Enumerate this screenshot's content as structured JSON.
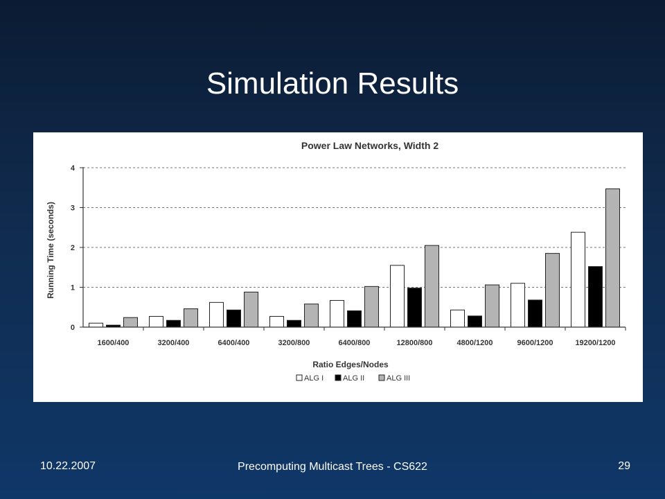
{
  "slide": {
    "title": "Simulation Results",
    "footer_date": "10.22.2007",
    "footer_course": "Precomputing Multicast Trees - CS622",
    "page_number": "29"
  },
  "colors": {
    "alg1": "#ffffff",
    "alg2": "#000000",
    "alg3": "#b4b4b4"
  },
  "chart_data": {
    "type": "bar",
    "title": "Power Law Networks, Width 2",
    "xlabel": "Ratio Edges/Nodes",
    "ylabel": "Running Time (seconds)",
    "ylim": [
      0,
      4
    ],
    "yticks": [
      "0",
      "1",
      "2",
      "3",
      "4"
    ],
    "grid": true,
    "legend_position": "bottom",
    "categories": [
      "1600/400",
      "3200/400",
      "6400/400",
      "3200/800",
      "6400/800",
      "12800/800",
      "4800/1200",
      "9600/1200",
      "19200/1200"
    ],
    "series": [
      {
        "name": "ALG I",
        "values": [
          0.1,
          0.27,
          0.62,
          0.27,
          0.67,
          1.55,
          0.43,
          1.1,
          2.38
        ]
      },
      {
        "name": "ALG II",
        "values": [
          0.05,
          0.17,
          0.43,
          0.17,
          0.41,
          0.98,
          0.28,
          0.68,
          1.52
        ]
      },
      {
        "name": "ALG III",
        "values": [
          0.24,
          0.46,
          0.88,
          0.58,
          1.02,
          2.05,
          1.06,
          1.85,
          3.47
        ]
      }
    ]
  }
}
